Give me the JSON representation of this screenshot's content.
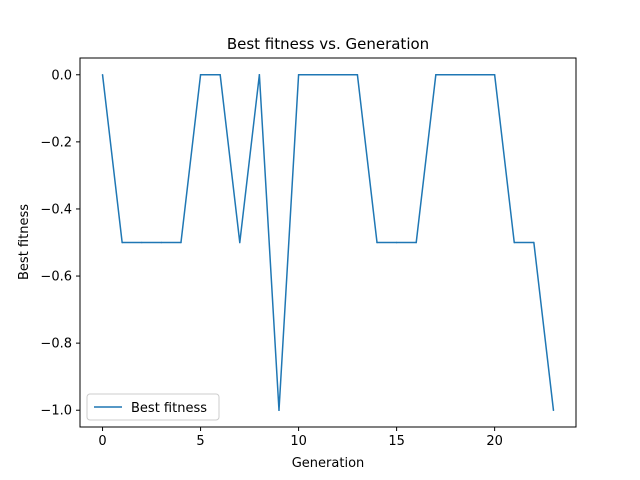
{
  "chart_data": {
    "type": "line",
    "title": "Best fitness vs. Generation",
    "xlabel": "Generation",
    "ylabel": "Best fitness",
    "xlim": [
      -1.15,
      24.15
    ],
    "ylim": [
      -1.05,
      0.05
    ],
    "xticks": [
      0,
      5,
      10,
      15,
      20
    ],
    "xtick_labels": [
      "0",
      "5",
      "10",
      "15",
      "20"
    ],
    "yticks": [
      0.0,
      -0.2,
      -0.4,
      -0.6,
      -0.8,
      -1.0
    ],
    "ytick_labels": [
      "0.0",
      "−0.2",
      "−0.4",
      "−0.6",
      "−0.8",
      "−1.0"
    ],
    "grid": false,
    "legend_position": "lower-left",
    "series": [
      {
        "name": "Best fitness",
        "color": "#1f77b4",
        "x": [
          0,
          1,
          2,
          3,
          4,
          5,
          6,
          7,
          8,
          9,
          10,
          11,
          12,
          13,
          14,
          15,
          16,
          17,
          18,
          19,
          20,
          21,
          22,
          23
        ],
        "values": [
          0,
          -0.5,
          -0.5,
          -0.5,
          -0.5,
          0,
          0,
          -0.5,
          0,
          -1.0,
          0,
          0,
          0,
          0,
          -0.5,
          -0.5,
          -0.5,
          0,
          0,
          0,
          0,
          -0.5,
          -0.5,
          -1.0
        ]
      }
    ]
  }
}
